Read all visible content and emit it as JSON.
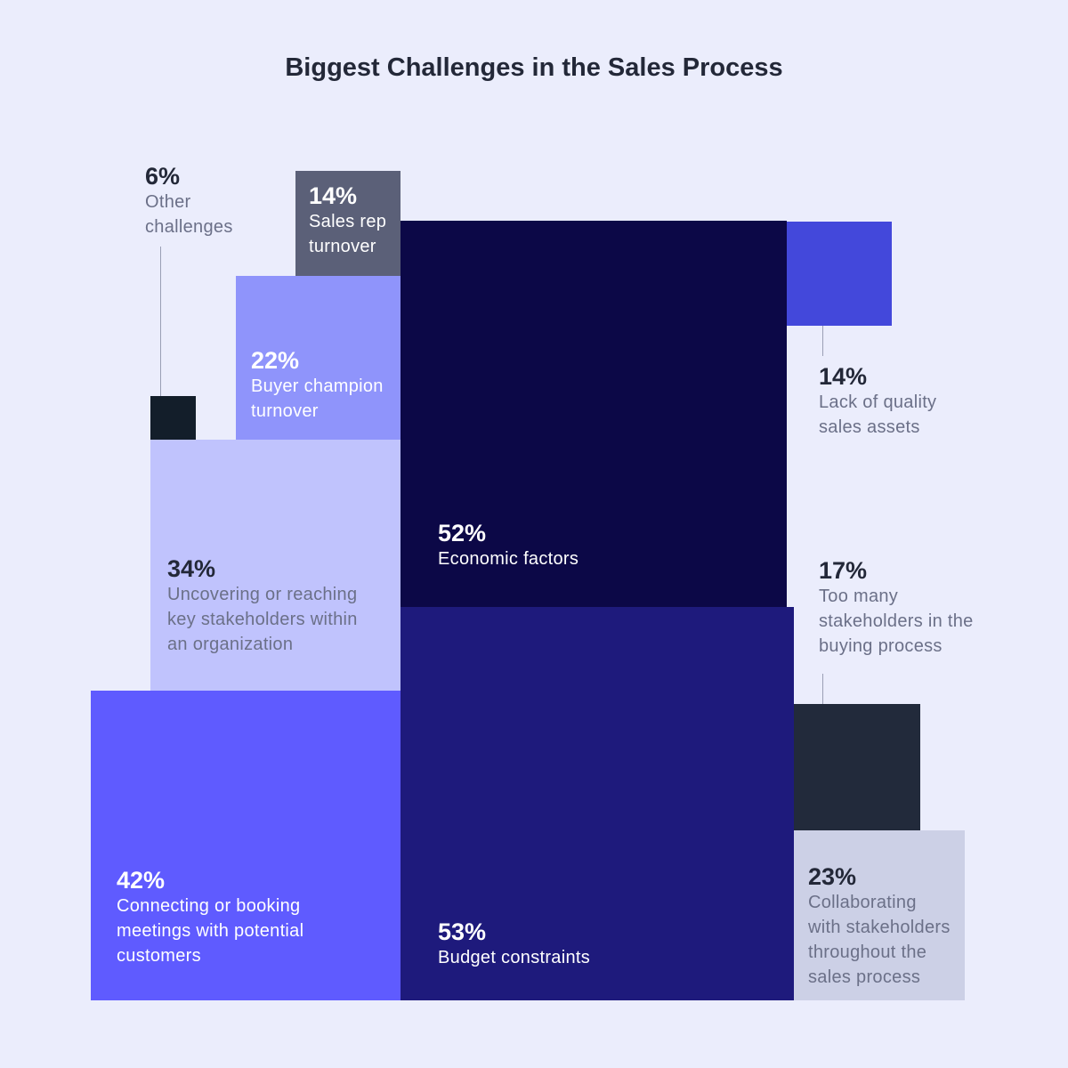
{
  "chart_data": {
    "type": "treemap",
    "title": "Biggest Challenges in the Sales Process",
    "unit": "%",
    "items": [
      {
        "value": 6,
        "value_label": "6%",
        "lines": [
          "Other",
          "challenges"
        ],
        "color": "#131e2a"
      },
      {
        "value": 14,
        "value_label": "14%",
        "lines": [
          "Sales rep",
          "turnover"
        ],
        "color": "#5b6078"
      },
      {
        "value": 22,
        "value_label": "22%",
        "lines": [
          "Buyer champion",
          "turnover"
        ],
        "color": "#8f94fb"
      },
      {
        "value": 34,
        "value_label": "34%",
        "lines": [
          "Uncovering or reaching",
          "key stakeholders within",
          "an organization"
        ],
        "color": "#c0c3fd"
      },
      {
        "value": 42,
        "value_label": "42%",
        "lines": [
          "Connecting or booking",
          "meetings with potential",
          "customers"
        ],
        "color": "#5f5bff"
      },
      {
        "value": 52,
        "value_label": "52%",
        "lines": [
          "Economic factors"
        ],
        "color": "#0c0847"
      },
      {
        "value": 53,
        "value_label": "53%",
        "lines": [
          "Budget constraints"
        ],
        "color": "#1e1a7c"
      },
      {
        "value": 14,
        "value_label": "14%",
        "lines": [
          "Lack of quality",
          "sales assets"
        ],
        "color": "#4348db"
      },
      {
        "value": 17,
        "value_label": "17%",
        "lines": [
          "Too many",
          "stakeholders in the",
          "buying process"
        ],
        "color": "#222a3b"
      },
      {
        "value": 23,
        "value_label": "23%",
        "lines": [
          "Collaborating",
          "with stakeholders",
          "throughout the",
          "sales process"
        ],
        "color": "#ccd0e6"
      }
    ]
  }
}
